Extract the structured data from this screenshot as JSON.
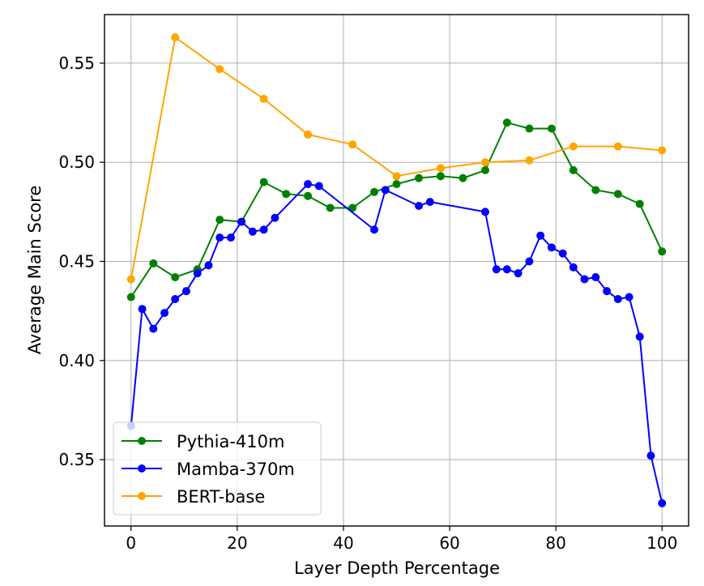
{
  "chart_data": {
    "type": "line",
    "xlabel": "Layer Depth Percentage",
    "ylabel": "Average Main Score",
    "xlim": [
      -5,
      105
    ],
    "ylim": [
      0.3165,
      0.5745
    ],
    "xticks": [
      0,
      20,
      40,
      60,
      80,
      100
    ],
    "yticks": [
      0.35,
      0.4,
      0.45,
      0.5,
      0.55
    ],
    "xtick_labels": [
      "0",
      "20",
      "40",
      "60",
      "80",
      "100"
    ],
    "ytick_labels": [
      "0.35",
      "0.40",
      "0.45",
      "0.50",
      "0.55"
    ],
    "grid": true,
    "legend_position": "bottom-left",
    "series": [
      {
        "name": "Pythia-410m",
        "color": "#008000",
        "x": [
          0,
          4.2,
          8.3,
          12.5,
          16.7,
          20.8,
          25.0,
          29.2,
          33.3,
          37.5,
          41.7,
          45.8,
          50.0,
          54.2,
          58.3,
          62.5,
          66.7,
          70.8,
          75.0,
          79.2,
          83.3,
          87.5,
          91.7,
          95.8,
          100
        ],
        "y": [
          0.432,
          0.449,
          0.442,
          0.446,
          0.471,
          0.47,
          0.49,
          0.484,
          0.483,
          0.477,
          0.477,
          0.485,
          0.489,
          0.492,
          0.493,
          0.492,
          0.496,
          0.52,
          0.517,
          0.517,
          0.496,
          0.486,
          0.484,
          0.479,
          0.455
        ]
      },
      {
        "name": "Mamba-370m",
        "color": "#0000ff",
        "x": [
          0,
          2.1,
          4.2,
          6.3,
          8.3,
          10.4,
          12.5,
          14.6,
          16.7,
          18.8,
          20.8,
          22.9,
          25.0,
          27.1,
          33.3,
          35.4,
          45.8,
          47.9,
          54.2,
          56.3,
          66.7,
          68.8,
          70.8,
          72.9,
          75.0,
          77.1,
          79.2,
          81.3,
          83.3,
          85.4,
          87.5,
          89.6,
          91.7,
          93.8,
          95.8,
          97.9,
          100
        ],
        "y": [
          0.367,
          0.426,
          0.416,
          0.424,
          0.431,
          0.435,
          0.444,
          0.448,
          0.462,
          0.462,
          0.47,
          0.465,
          0.466,
          0.472,
          0.489,
          0.488,
          0.466,
          0.486,
          0.478,
          0.48,
          0.475,
          0.446,
          0.446,
          0.444,
          0.45,
          0.463,
          0.457,
          0.454,
          0.447,
          0.441,
          0.442,
          0.435,
          0.431,
          0.432,
          0.412,
          0.352,
          0.328
        ]
      },
      {
        "name": "BERT-base",
        "color": "#ffa500",
        "x": [
          0,
          8.3,
          16.7,
          25.0,
          33.3,
          41.7,
          50.0,
          58.3,
          66.7,
          75.0,
          83.3,
          91.7,
          100
        ],
        "y": [
          0.441,
          0.563,
          0.547,
          0.532,
          0.514,
          0.509,
          0.493,
          0.497,
          0.5,
          0.501,
          0.508,
          0.508,
          0.506
        ]
      }
    ]
  }
}
